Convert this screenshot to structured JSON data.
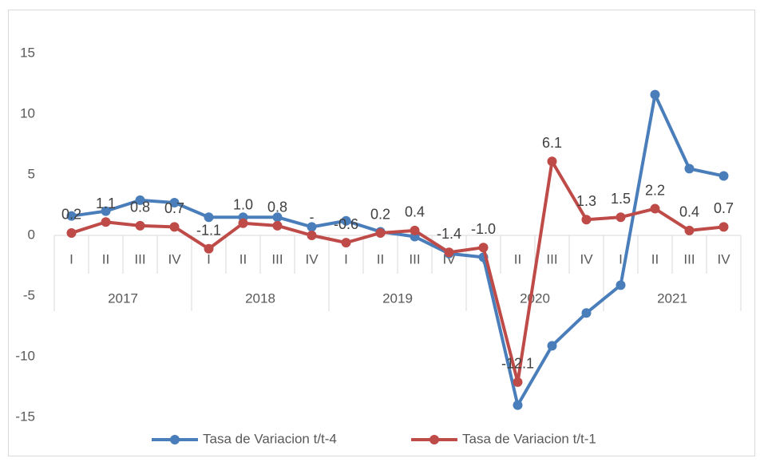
{
  "chart_data": {
    "type": "line",
    "categories": [
      "I",
      "II",
      "III",
      "IV",
      "I",
      "II",
      "III",
      "IV",
      "I",
      "II",
      "III",
      "IV",
      "I",
      "II",
      "III",
      "IV",
      "I",
      "II",
      "III",
      "IV"
    ],
    "category_groups": [
      "2017",
      "2018",
      "2019",
      "2020",
      "2021"
    ],
    "series": [
      {
        "name": "Tasa de Variacion t/t-4",
        "color": "#4a7ebb",
        "values": [
          1.6,
          2.0,
          2.9,
          2.7,
          1.5,
          1.5,
          1.5,
          0.7,
          1.2,
          0.3,
          -0.1,
          -1.5,
          -1.8,
          -14.0,
          -9.1,
          -6.4,
          -4.1,
          11.6,
          5.5,
          4.9
        ]
      },
      {
        "name": "Tasa de Variacion t/t-1",
        "color": "#be4b48",
        "values": [
          0.2,
          1.1,
          0.8,
          0.7,
          -1.1,
          1.0,
          0.8,
          0,
          -0.6,
          0.2,
          0.4,
          -1.4,
          -1.0,
          -12.1,
          6.1,
          1.3,
          1.5,
          2.2,
          0.4,
          0.7
        ],
        "value_labels": [
          "0.2",
          "1.1",
          "0.8",
          "0.7",
          "-1.1",
          "1.0",
          "0.8",
          "-",
          "-0.6",
          "0.2",
          "0.4",
          "-1.4",
          "-1.0",
          "-12.1",
          "6.1",
          "1.3",
          "1.5",
          "2.2",
          "0.4",
          "0.7"
        ]
      }
    ],
    "ylim": [
      -15,
      15
    ],
    "yticks": [
      15,
      10,
      5,
      0,
      -5,
      -10,
      -15
    ],
    "grid": false,
    "legend": "bottom"
  }
}
